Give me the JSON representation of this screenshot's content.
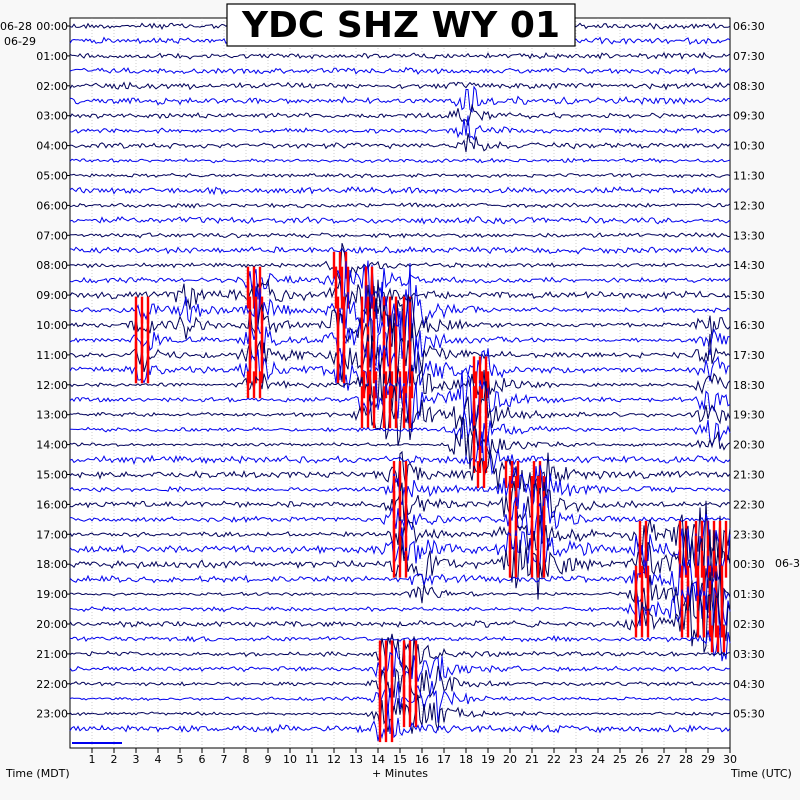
{
  "chart_data": {
    "type": "line",
    "title": "YDC SHZ WY 01",
    "xlabel": "+ Minutes",
    "left_axis_label": "Time (MDT)",
    "right_axis_label": "Time (UTC)",
    "xlim": [
      0,
      30
    ],
    "x_ticks": [
      "1",
      "2",
      "3",
      "4",
      "5",
      "6",
      "7",
      "8",
      "9",
      "10",
      "11",
      "12",
      "13",
      "14",
      "15",
      "16",
      "17",
      "18",
      "19",
      "20",
      "21",
      "22",
      "23",
      "24",
      "25",
      "26",
      "27",
      "28",
      "29",
      "30"
    ],
    "left_date_labels": [
      "06-28",
      "06-29"
    ],
    "right_date_label": "06-3",
    "left_hour_labels": [
      "00:00",
      "01:00",
      "02:00",
      "03:00",
      "04:00",
      "05:00",
      "06:00",
      "07:00",
      "08:00",
      "09:00",
      "10:00",
      "11:00",
      "12:00",
      "13:00",
      "14:00",
      "15:00",
      "16:00",
      "17:00",
      "18:00",
      "19:00",
      "20:00",
      "21:00",
      "22:00",
      "23:00"
    ],
    "right_hour_labels": [
      "06:30",
      "07:30",
      "08:30",
      "09:30",
      "10:30",
      "11:30",
      "12:30",
      "13:30",
      "14:30",
      "15:30",
      "16:30",
      "17:30",
      "18:30",
      "19:30",
      "20:30",
      "21:30",
      "22:30",
      "23:30",
      "00:30",
      "01:30",
      "02:30",
      "03:30",
      "04:30",
      "05:30"
    ],
    "trace_count": 48,
    "trace_colors": [
      "#00005a",
      "#0000ee"
    ],
    "clip_color": "#ff0000",
    "grid": true,
    "events": [
      {
        "x": 3.3,
        "row_start": 19,
        "row_end": 23,
        "amp": 0.7,
        "clip": true
      },
      {
        "x": 5.2,
        "row_start": 18,
        "row_end": 20,
        "amp": 0.9,
        "clip": false
      },
      {
        "x": 8.4,
        "row_start": 17,
        "row_end": 24,
        "amp": 1.4,
        "clip": true
      },
      {
        "x": 12.3,
        "row_start": 16,
        "row_end": 23,
        "amp": 1.6,
        "clip": true
      },
      {
        "x": 13.6,
        "row_start": 17,
        "row_end": 26,
        "amp": 1.6,
        "clip": true
      },
      {
        "x": 14.5,
        "row_start": 19,
        "row_end": 26,
        "amp": 1.8,
        "clip": true
      },
      {
        "x": 15.3,
        "row_start": 19,
        "row_end": 26,
        "amp": 1.9,
        "clip": true
      },
      {
        "x": 18.7,
        "row_start": 23,
        "row_end": 30,
        "amp": 1.7,
        "clip": true
      },
      {
        "x": 17.8,
        "row_start": 25,
        "row_end": 28,
        "amp": 1.4,
        "clip": false
      },
      {
        "x": 15.0,
        "row_start": 30,
        "row_end": 36,
        "amp": 1.6,
        "clip": true
      },
      {
        "x": 20.1,
        "row_start": 30,
        "row_end": 36,
        "amp": 1.5,
        "clip": true
      },
      {
        "x": 21.2,
        "row_start": 30,
        "row_end": 36,
        "amp": 2.3,
        "clip": true
      },
      {
        "x": 26.0,
        "row_start": 34,
        "row_end": 40,
        "amp": 1.4,
        "clip": true
      },
      {
        "x": 27.9,
        "row_start": 34,
        "row_end": 40,
        "amp": 1.7,
        "clip": true
      },
      {
        "x": 28.8,
        "row_start": 34,
        "row_end": 40,
        "amp": 1.8,
        "clip": true
      },
      {
        "x": 29.5,
        "row_start": 34,
        "row_end": 41,
        "amp": 1.5,
        "clip": true
      },
      {
        "x": 14.4,
        "row_start": 42,
        "row_end": 47,
        "amp": 1.5,
        "clip": true
      },
      {
        "x": 15.4,
        "row_start": 42,
        "row_end": 46,
        "amp": 1.4,
        "clip": true
      },
      {
        "x": 16.6,
        "row_start": 43,
        "row_end": 46,
        "amp": 1.0,
        "clip": false
      },
      {
        "x": 29.0,
        "row_start": 20,
        "row_end": 28,
        "amp": 1.0,
        "clip": false
      },
      {
        "x": 18.0,
        "row_start": 5,
        "row_end": 8,
        "amp": 0.8,
        "clip": false
      },
      {
        "x": 16.0,
        "row_start": 35,
        "row_end": 38,
        "amp": 0.8,
        "clip": false
      }
    ]
  }
}
